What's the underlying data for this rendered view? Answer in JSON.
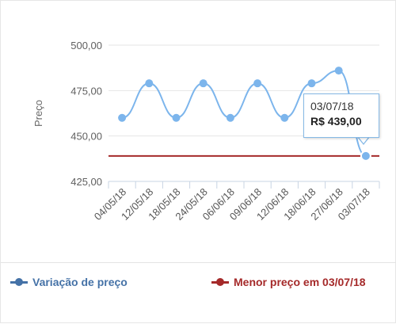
{
  "chart_data": {
    "type": "line",
    "categories": [
      "04/05/18",
      "12/05/18",
      "18/05/18",
      "24/05/18",
      "06/06/18",
      "09/06/18",
      "12/06/18",
      "18/06/18",
      "27/06/18",
      "03/07/18"
    ],
    "series": [
      {
        "name": "Variação de preço",
        "values": [
          460,
          479,
          460,
          479,
          460,
          479,
          460,
          479,
          486,
          439
        ],
        "color": "#7cb5ec",
        "legend_color": "#4572a7"
      },
      {
        "name": "Menor preço em 03/07/18",
        "values": [
          439,
          439,
          439,
          439,
          439,
          439,
          439,
          439,
          439,
          439
        ],
        "color": "#a52a2a"
      }
    ],
    "ylabel": "Preço",
    "y_ticks": [
      "425,00",
      "450,00",
      "475,00",
      "500,00"
    ],
    "y_tick_values": [
      425,
      450,
      475,
      500
    ],
    "ylim": [
      425,
      500
    ],
    "grid": true,
    "legend_placement": "bottom",
    "tooltip": {
      "date": "03/07/18",
      "price": "R$ 439,00"
    }
  }
}
